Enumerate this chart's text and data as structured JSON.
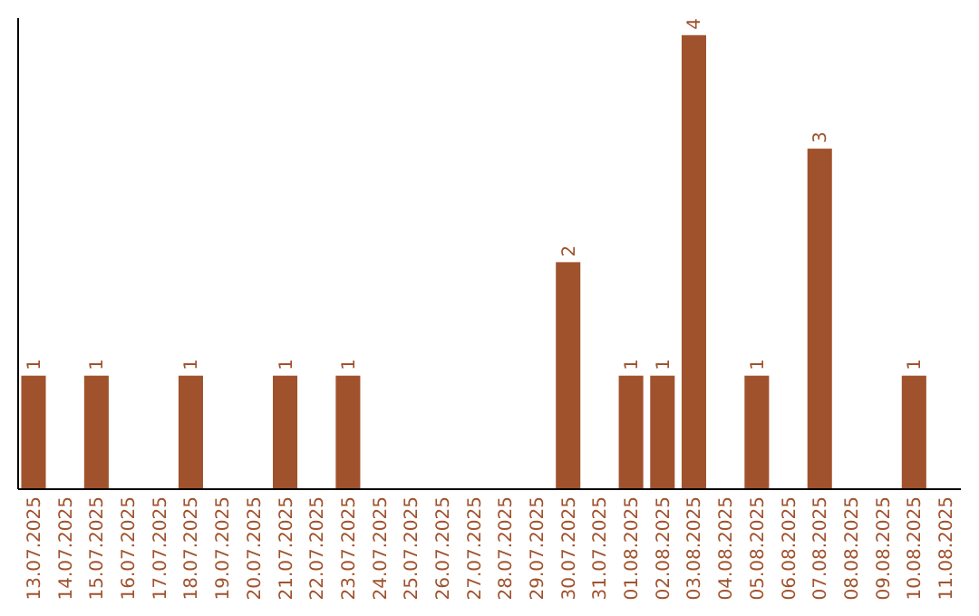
{
  "chart_data": {
    "type": "bar",
    "categories": [
      "13.07.2025",
      "14.07.2025",
      "15.07.2025",
      "16.07.2025",
      "17.07.2025",
      "18.07.2025",
      "19.07.2025",
      "20.07.2025",
      "21.07.2025",
      "22.07.2025",
      "23.07.2025",
      "24.07.2025",
      "25.07.2025",
      "26.07.2025",
      "27.07.2025",
      "28.07.2025",
      "29.07.2025",
      "30.07.2025",
      "31.07.2025",
      "01.08.2025",
      "02.08.2025",
      "03.08.2025",
      "04.08.2025",
      "05.08.2025",
      "06.08.2025",
      "07.08.2025",
      "08.08.2025",
      "09.08.2025",
      "10.08.2025",
      "11.08.2025"
    ],
    "values": [
      1,
      0,
      1,
      0,
      0,
      1,
      0,
      0,
      1,
      0,
      1,
      0,
      0,
      0,
      0,
      0,
      0,
      2,
      0,
      1,
      1,
      4,
      0,
      1,
      0,
      3,
      0,
      0,
      1,
      0
    ],
    "value_labels": [
      "1",
      null,
      "1",
      null,
      null,
      "1",
      null,
      null,
      "1",
      null,
      "1",
      null,
      null,
      null,
      null,
      null,
      null,
      "2",
      null,
      "1",
      "1",
      "4",
      null,
      "1",
      null,
      "3",
      null,
      null,
      "1",
      null
    ],
    "color": "#a0522d",
    "ylim": [
      0,
      4.15
    ],
    "tick_labels": "x"
  }
}
